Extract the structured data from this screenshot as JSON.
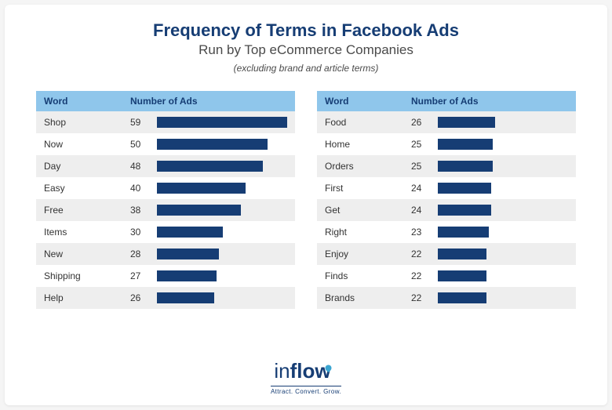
{
  "title": "Frequency of Terms in Facebook Ads",
  "subtitle": "Run by Top eCommerce Companies",
  "note": "(excluding brand and article terms)",
  "title_color": "#163d74",
  "title_fontsize": 22,
  "subtitle_color": "#4a4a4a",
  "subtitle_fontsize": 17,
  "note_color": "#4a4a4a",
  "note_fontsize": 12,
  "header_bg": "#8fc6eb",
  "header_text_color": "#163d74",
  "row_odd_bg": "#eeeeee",
  "row_even_bg": "#ffffff",
  "row_text_color": "#333333",
  "bar_color": "#163d74",
  "bar_max_value": 59,
  "columns": {
    "word": "Word",
    "count": "Number of Ads"
  },
  "left": [
    {
      "word": "Shop",
      "count": 59
    },
    {
      "word": "Now",
      "count": 50
    },
    {
      "word": "Day",
      "count": 48
    },
    {
      "word": "Easy",
      "count": 40
    },
    {
      "word": "Free",
      "count": 38
    },
    {
      "word": "Items",
      "count": 30
    },
    {
      "word": "New",
      "count": 28
    },
    {
      "word": "Shipping",
      "count": 27
    },
    {
      "word": "Help",
      "count": 26
    }
  ],
  "right": [
    {
      "word": "Food",
      "count": 26
    },
    {
      "word": "Home",
      "count": 25
    },
    {
      "word": "Orders",
      "count": 25
    },
    {
      "word": "First",
      "count": 24
    },
    {
      "word": "Get",
      "count": 24
    },
    {
      "word": "Right",
      "count": 23
    },
    {
      "word": "Enjoy",
      "count": 22
    },
    {
      "word": "Finds",
      "count": 22
    },
    {
      "word": "Brands",
      "count": 22
    }
  ],
  "logo": {
    "part1": "in",
    "part2": "flow",
    "color": "#163d74",
    "drop_color": "#3aa5d1"
  },
  "tagline": "Attract. Convert. Grow."
}
